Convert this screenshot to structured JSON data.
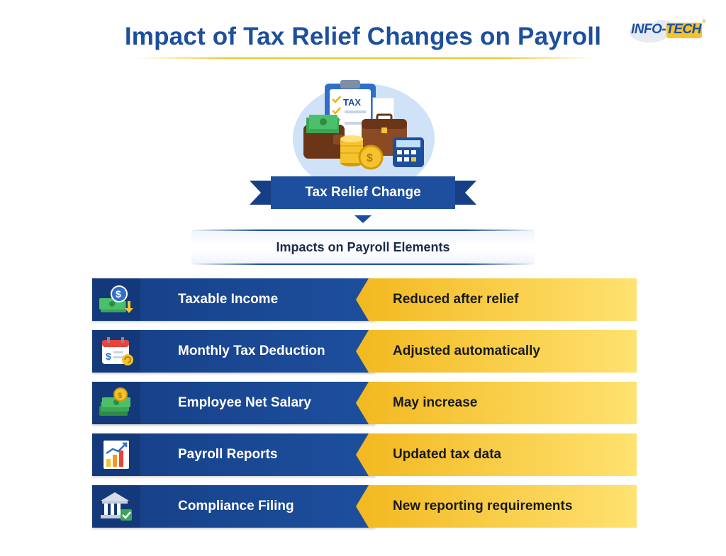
{
  "title": "Impact of Tax Relief Changes on Payroll",
  "logo": {
    "text": "INFO-TECH",
    "registered": "®"
  },
  "hero": {
    "clipboard_text": "TAX",
    "coin_symbol": "$"
  },
  "ribbon": {
    "label": "Tax Relief Change"
  },
  "subheader": {
    "label": "Impacts on Payroll Elements"
  },
  "colors": {
    "primary": "#1d4f9e",
    "accent": "#f4c430",
    "text_dark": "#1a1a1a"
  },
  "rows": [
    {
      "label": "Taxable Income",
      "value": "Reduced after relief",
      "icon": "money-dollar-icon"
    },
    {
      "label": "Monthly Tax Deduction",
      "value": "Adjusted automatically",
      "icon": "calendar-dollar-icon"
    },
    {
      "label": "Employee Net Salary",
      "value": "May increase",
      "icon": "cash-coin-icon"
    },
    {
      "label": "Payroll Reports",
      "value": "Updated tax data",
      "icon": "bar-chart-icon"
    },
    {
      "label": "Compliance Filing",
      "value": "New reporting requirements",
      "icon": "bank-check-icon"
    }
  ]
}
